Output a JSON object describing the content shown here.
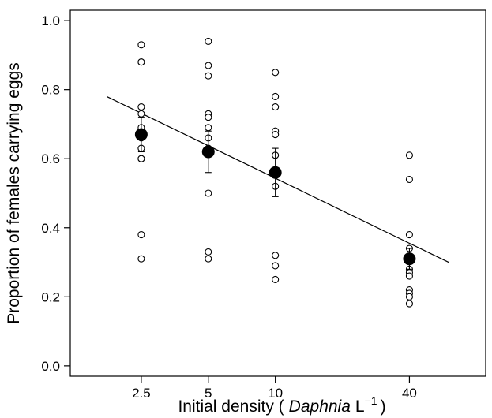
{
  "chart_data": {
    "type": "scatter",
    "title": "",
    "xlabel": {
      "prefix": "Initial density (",
      "italic": "Daphnia",
      "unit": "L",
      "exponent": "−1",
      "suffix": ")"
    },
    "ylabel": "Proportion of females carrying eggs",
    "x_scale": "log",
    "xlim": [
      1.2,
      88
    ],
    "ylim": [
      -0.03,
      1.03
    ],
    "x_ticks": [
      {
        "value": 2.5,
        "label": "2.5"
      },
      {
        "value": 5,
        "label": "5"
      },
      {
        "value": 10,
        "label": "10"
      },
      {
        "value": 40,
        "label": "40"
      }
    ],
    "y_ticks": [
      {
        "value": 0.0,
        "label": "0.0"
      },
      {
        "value": 0.2,
        "label": "0.2"
      },
      {
        "value": 0.4,
        "label": "0.4"
      },
      {
        "value": 0.6,
        "label": "0.6"
      },
      {
        "value": 0.8,
        "label": "0.8"
      },
      {
        "value": 1.0,
        "label": "1.0"
      }
    ],
    "grid": false,
    "legend": "none",
    "series": [
      {
        "marker": "open-circle",
        "points": [
          {
            "x": 2.5,
            "y": 0.93
          },
          {
            "x": 2.5,
            "y": 0.88
          },
          {
            "x": 2.5,
            "y": 0.88
          },
          {
            "x": 2.5,
            "y": 0.75
          },
          {
            "x": 2.5,
            "y": 0.73
          },
          {
            "x": 2.5,
            "y": 0.69
          },
          {
            "x": 2.5,
            "y": 0.66
          },
          {
            "x": 2.5,
            "y": 0.63
          },
          {
            "x": 2.5,
            "y": 0.6
          },
          {
            "x": 2.5,
            "y": 0.6
          },
          {
            "x": 2.5,
            "y": 0.38
          },
          {
            "x": 2.5,
            "y": 0.31
          },
          {
            "x": 5,
            "y": 0.94
          },
          {
            "x": 5,
            "y": 0.87
          },
          {
            "x": 5,
            "y": 0.84
          },
          {
            "x": 5,
            "y": 0.73
          },
          {
            "x": 5,
            "y": 0.72
          },
          {
            "x": 5,
            "y": 0.69
          },
          {
            "x": 5,
            "y": 0.66
          },
          {
            "x": 5,
            "y": 0.63
          },
          {
            "x": 5,
            "y": 0.5
          },
          {
            "x": 5,
            "y": 0.33
          },
          {
            "x": 5,
            "y": 0.31
          },
          {
            "x": 10,
            "y": 0.85
          },
          {
            "x": 10,
            "y": 0.78
          },
          {
            "x": 10,
            "y": 0.75
          },
          {
            "x": 10,
            "y": 0.68
          },
          {
            "x": 10,
            "y": 0.67
          },
          {
            "x": 10,
            "y": 0.61
          },
          {
            "x": 10,
            "y": 0.52
          },
          {
            "x": 10,
            "y": 0.32
          },
          {
            "x": 10,
            "y": 0.29
          },
          {
            "x": 10,
            "y": 0.25
          },
          {
            "x": 40,
            "y": 0.61
          },
          {
            "x": 40,
            "y": 0.54
          },
          {
            "x": 40,
            "y": 0.38
          },
          {
            "x": 40,
            "y": 0.34
          },
          {
            "x": 40,
            "y": 0.31
          },
          {
            "x": 40,
            "y": 0.28
          },
          {
            "x": 40,
            "y": 0.27
          },
          {
            "x": 40,
            "y": 0.26
          },
          {
            "x": 40,
            "y": 0.22
          },
          {
            "x": 40,
            "y": 0.21
          },
          {
            "x": 40,
            "y": 0.2
          },
          {
            "x": 40,
            "y": 0.18
          }
        ]
      },
      {
        "marker": "filled-circle",
        "error_bars": "SE",
        "points": [
          {
            "x": 2.5,
            "y": 0.67,
            "err": 0.05
          },
          {
            "x": 5,
            "y": 0.62,
            "err": 0.06
          },
          {
            "x": 10,
            "y": 0.56,
            "err": 0.07
          },
          {
            "x": 40,
            "y": 0.31,
            "err": 0.03
          }
        ]
      },
      {
        "type": "line",
        "points": [
          {
            "x": 1.75,
            "y": 0.78
          },
          {
            "x": 60,
            "y": 0.3
          }
        ]
      }
    ]
  }
}
